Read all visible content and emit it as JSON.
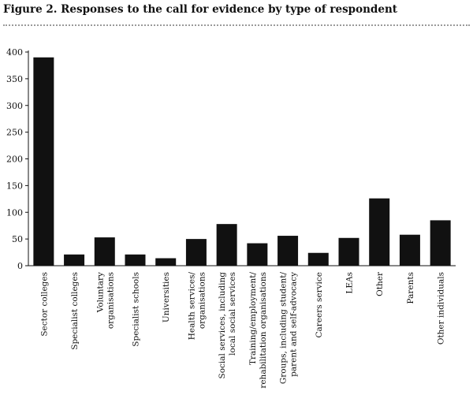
{
  "figure": {
    "title": "Figure 2.  Responses to the call for evidence by type of respondent"
  },
  "chart_data": {
    "type": "bar",
    "title": "Figure 2.  Responses to the call for evidence by type of respondent",
    "xlabel": "",
    "ylabel": "",
    "ylim": [
      0,
      400
    ],
    "yticks": [
      0,
      50,
      100,
      150,
      200,
      250,
      300,
      350,
      400
    ],
    "grid": false,
    "legend": "none",
    "bar_color": "#111111",
    "categories": [
      [
        "Sector colleges"
      ],
      [
        "Specialist colleges"
      ],
      [
        "Voluntary",
        "organisations"
      ],
      [
        "Specialist schools"
      ],
      [
        "Universities"
      ],
      [
        "Health services/",
        "organisations"
      ],
      [
        "Social services, including",
        "local social services"
      ],
      [
        "Training/employment/",
        "rehabilitation organisations"
      ],
      [
        "Groups, including student/",
        "parent and self-advocacy"
      ],
      [
        "Careers service"
      ],
      [
        "LEAs"
      ],
      [
        "Other"
      ],
      [
        "Parents"
      ],
      [
        "Other individuals"
      ]
    ],
    "values": [
      390,
      21,
      53,
      21,
      14,
      50,
      78,
      42,
      56,
      24,
      52,
      126,
      58,
      85
    ]
  }
}
